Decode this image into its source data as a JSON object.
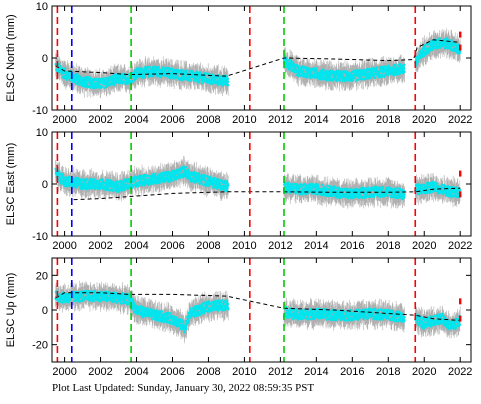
{
  "chart_data": [
    {
      "type": "scatter",
      "ylabel": "ELSC North (mm)",
      "ylim": [
        -10,
        10
      ],
      "yticks": [
        -10,
        0,
        10
      ],
      "xlim": [
        1999.3,
        2022.6
      ],
      "xticks": [
        2000,
        2002,
        2004,
        2006,
        2008,
        2010,
        2012,
        2014,
        2016,
        2018,
        2020,
        2022
      ],
      "xticklabels": [
        "2000",
        "2002",
        "2004",
        "2006",
        "2008",
        "2010",
        "2012",
        "2014",
        "2016",
        "2018",
        "2020",
        "2022"
      ],
      "series": [
        {
          "color": "#00e5ee",
          "error_color": "#b0b0b0",
          "segments": [
            {
              "x": [
                1999.5,
                2000.0,
                2001.0,
                2002.0,
                2003.0,
                2003.6,
                2004.0,
                2005.0,
                2006.0,
                2007.0,
                2008.0,
                2009.1
              ],
              "y": [
                -1.5,
                -3.0,
                -4.5,
                -5.0,
                -4.0,
                -4.0,
                -3.0,
                -2.5,
                -3.0,
                -3.5,
                -4.0,
                -4.5
              ]
            },
            {
              "x": [
                2012.2,
                2013.0,
                2014.0,
                2015.0,
                2016.0,
                2017.0,
                2018.0,
                2018.9
              ],
              "y": [
                -0.5,
                -2.5,
                -3.0,
                -3.5,
                -3.5,
                -3.0,
                -2.5,
                -2.0
              ]
            },
            {
              "x": [
                2019.5,
                2020.0,
                2020.5,
                2021.0,
                2021.5,
                2022.0
              ],
              "y": [
                -1.0,
                1.5,
                2.5,
                3.0,
                2.5,
                1.5
              ]
            }
          ]
        },
        {
          "color": "#000000",
          "style": "dashed",
          "x": [
            1999.5,
            2000.0,
            2002.0,
            2003.6,
            2006.0,
            2009.0,
            2012.2,
            2015.0,
            2018.0,
            2019.4,
            2019.6,
            2020.5,
            2022.0
          ],
          "y": [
            -1.5,
            -2.5,
            -2.8,
            -3.2,
            -3.0,
            -3.5,
            0.0,
            -0.2,
            -0.5,
            -0.3,
            2.0,
            3.5,
            3.0
          ]
        }
      ],
      "outliers": [
        {
          "x": 2022.0,
          "y": 4.5,
          "color": "#ff0000"
        },
        {
          "x": 2022.0,
          "y": 2.0,
          "color": "#ff0000"
        }
      ],
      "vlines": [
        {
          "x": 1999.6,
          "color": "#ff0000"
        },
        {
          "x": 2000.4,
          "color": "#0000ff"
        },
        {
          "x": 2003.7,
          "color": "#00cc00"
        },
        {
          "x": 2010.3,
          "color": "#ff0000"
        },
        {
          "x": 2012.2,
          "color": "#00cc00"
        },
        {
          "x": 2019.5,
          "color": "#ff0000"
        }
      ]
    },
    {
      "type": "scatter",
      "ylabel": "ELSC East (mm)",
      "ylim": [
        -10,
        10
      ],
      "yticks": [
        -10,
        0,
        10
      ],
      "xlim": [
        1999.3,
        2022.6
      ],
      "xticks": [
        2000,
        2002,
        2004,
        2006,
        2008,
        2010,
        2012,
        2014,
        2016,
        2018,
        2020,
        2022
      ],
      "xticklabels": [
        "2000",
        "2002",
        "2004",
        "2006",
        "2008",
        "2010",
        "2012",
        "2014",
        "2016",
        "2018",
        "2020",
        "2022"
      ],
      "series": [
        {
          "color": "#00e5ee",
          "error_color": "#b0b0b0",
          "segments": [
            {
              "x": [
                1999.5,
                2000.0,
                2001.0,
                2002.0,
                2003.0,
                2004.0,
                2005.0,
                2006.0,
                2006.7,
                2007.0,
                2008.0,
                2009.1
              ],
              "y": [
                2.0,
                0.5,
                0.0,
                0.0,
                -0.5,
                0.5,
                1.0,
                1.5,
                2.5,
                1.5,
                0.5,
                -0.5
              ]
            },
            {
              "x": [
                2012.2,
                2013.0,
                2014.0,
                2015.0,
                2016.0,
                2017.0,
                2018.0,
                2018.9
              ],
              "y": [
                -0.5,
                -1.0,
                -1.0,
                -1.5,
                -2.0,
                -1.5,
                -1.5,
                -2.0
              ]
            },
            {
              "x": [
                2019.5,
                2020.0,
                2020.5,
                2021.0,
                2021.5,
                2022.0
              ],
              "y": [
                -1.0,
                -1.0,
                -0.5,
                -1.0,
                -1.5,
                -1.5
              ]
            }
          ]
        },
        {
          "color": "#000000",
          "style": "dashed",
          "x": [
            2000.5,
            2002.0,
            2004.0,
            2006.0,
            2009.0,
            2012.2,
            2015.0,
            2018.0,
            2019.5,
            2020.5,
            2022.0
          ],
          "y": [
            -3.0,
            -2.8,
            -2.3,
            -1.8,
            -1.5,
            -1.5,
            -1.6,
            -1.6,
            -1.5,
            -1.0,
            -0.8
          ]
        }
      ],
      "outliers": [
        {
          "x": 2022.0,
          "y": 2.0,
          "color": "#ff0000"
        },
        {
          "x": 2022.0,
          "y": -2.0,
          "color": "#ff0000"
        }
      ],
      "vlines": [
        {
          "x": 1999.6,
          "color": "#ff0000"
        },
        {
          "x": 2000.4,
          "color": "#0000ff"
        },
        {
          "x": 2003.7,
          "color": "#00cc00"
        },
        {
          "x": 2010.3,
          "color": "#ff0000"
        },
        {
          "x": 2012.2,
          "color": "#00cc00"
        },
        {
          "x": 2019.5,
          "color": "#ff0000"
        }
      ]
    },
    {
      "type": "scatter",
      "ylabel": "ELSC Up (mm)",
      "ylim": [
        -30,
        30
      ],
      "yticks": [
        -20,
        0,
        20
      ],
      "xlim": [
        1999.3,
        2022.6
      ],
      "xticks": [
        2000,
        2002,
        2004,
        2006,
        2008,
        2010,
        2012,
        2014,
        2016,
        2018,
        2020,
        2022
      ],
      "xticklabels": [
        "2000",
        "2002",
        "2004",
        "2006",
        "2008",
        "2010",
        "2012",
        "2014",
        "2016",
        "2018",
        "2020",
        "2022"
      ],
      "series": [
        {
          "color": "#00e5ee",
          "error_color": "#b0b0b0",
          "segments": [
            {
              "x": [
                1999.5,
                2000.0,
                2001.0,
                2002.0,
                2003.0,
                2003.6,
                2004.0,
                2005.0,
                2006.0,
                2006.7,
                2007.0,
                2008.0,
                2009.1
              ],
              "y": [
                8.0,
                7.0,
                8.0,
                8.0,
                7.0,
                6.0,
                0.0,
                -3.0,
                -5.0,
                -10.0,
                -2.0,
                2.0,
                3.0
              ]
            },
            {
              "x": [
                2012.2,
                2013.0,
                2014.0,
                2015.0,
                2016.0,
                2017.0,
                2018.0,
                2018.9
              ],
              "y": [
                -1.0,
                -3.0,
                -2.0,
                -3.0,
                -3.0,
                -2.0,
                -3.0,
                -4.0
              ]
            },
            {
              "x": [
                2019.5,
                2020.0,
                2020.5,
                2021.0,
                2021.5,
                2022.0
              ],
              "y": [
                -5.0,
                -8.0,
                -6.0,
                -5.0,
                -10.0,
                -6.0
              ]
            }
          ]
        },
        {
          "color": "#000000",
          "style": "dashed",
          "x": [
            1999.5,
            2000.0,
            2002.0,
            2003.6,
            2006.0,
            2009.0,
            2012.2,
            2015.0,
            2018.0,
            2019.5,
            2020.5,
            2022.0
          ],
          "y": [
            7.0,
            10.0,
            10.0,
            9.0,
            9.0,
            8.0,
            1.0,
            0.0,
            -2.0,
            -3.0,
            -5.0,
            -6.0
          ]
        }
      ],
      "outliers": [
        {
          "x": 2022.0,
          "y": 5.0,
          "color": "#ff0000"
        },
        {
          "x": 2022.0,
          "y": -5.0,
          "color": "#ff0000"
        }
      ],
      "vlines": [
        {
          "x": 1999.6,
          "color": "#ff0000"
        },
        {
          "x": 2000.4,
          "color": "#0000ff"
        },
        {
          "x": 2003.7,
          "color": "#00cc00"
        },
        {
          "x": 2010.3,
          "color": "#ff0000"
        },
        {
          "x": 2012.2,
          "color": "#00cc00"
        },
        {
          "x": 2019.5,
          "color": "#ff0000"
        }
      ]
    }
  ],
  "footer": {
    "text": "Plot Last Updated:   Sunday, January 30, 2022 08:59:35 PST"
  }
}
